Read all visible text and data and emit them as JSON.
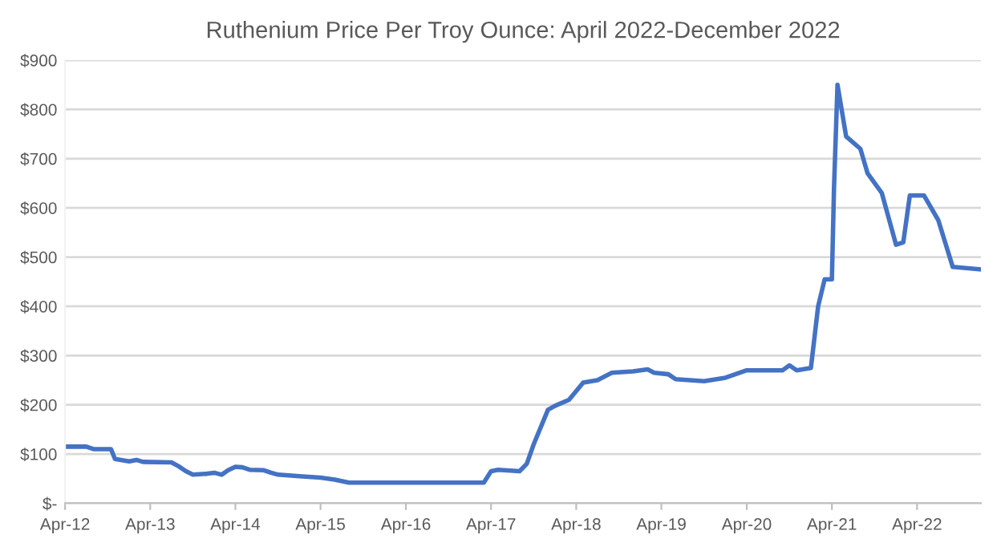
{
  "chart_data": {
    "type": "line",
    "title": "Ruthenium Price Per Troy Ounce: April 2022-December 2022",
    "x": [
      "2012-04-01",
      "2012-07-01",
      "2012-08-01",
      "2012-10-15",
      "2012-11-01",
      "2013-01-01",
      "2013-02-01",
      "2013-03-01",
      "2013-07-01",
      "2013-08-01",
      "2013-09-01",
      "2013-10-01",
      "2013-12-01",
      "2014-01-01",
      "2014-02-01",
      "2014-03-01",
      "2014-04-01",
      "2014-05-01",
      "2014-06-01",
      "2014-08-01",
      "2014-09-01",
      "2014-10-01",
      "2015-01-01",
      "2015-04-01",
      "2015-06-01",
      "2015-08-01",
      "2016-04-01",
      "2017-03-01",
      "2017-04-01",
      "2017-05-01",
      "2017-08-01",
      "2017-09-01",
      "2017-10-01",
      "2017-12-01",
      "2018-01-01",
      "2018-03-01",
      "2018-05-01",
      "2018-07-01",
      "2018-09-01",
      "2018-12-01",
      "2019-02-01",
      "2019-03-01",
      "2019-05-01",
      "2019-06-01",
      "2019-10-01",
      "2020-01-01",
      "2020-04-01",
      "2020-09-01",
      "2020-10-01",
      "2020-11-01",
      "2021-01-01",
      "2021-02-01",
      "2021-03-01",
      "2021-04-01",
      "2021-04-10",
      "2021-04-25",
      "2021-06-01",
      "2021-08-01",
      "2021-09-01",
      "2021-11-01",
      "2022-01-01",
      "2022-02-01",
      "2022-03-01",
      "2022-05-01",
      "2022-07-01",
      "2022-09-01",
      "2022-12-31"
    ],
    "series": [
      {
        "color": "#4472c4",
        "values": [
          115,
          115,
          110,
          110,
          90,
          85,
          88,
          84,
          83,
          75,
          65,
          58,
          60,
          62,
          58,
          67,
          74,
          73,
          68,
          67,
          62,
          58,
          55,
          52,
          48,
          42,
          42,
          42,
          65,
          68,
          65,
          80,
          120,
          190,
          198,
          210,
          245,
          250,
          265,
          268,
          272,
          265,
          262,
          252,
          248,
          255,
          270,
          270,
          280,
          270,
          275,
          400,
          455,
          455,
          640,
          850,
          745,
          720,
          670,
          630,
          525,
          530,
          625,
          625,
          575,
          480,
          475
        ]
      }
    ],
    "xlim": [
      "2012-04-01",
      "2022-12-31"
    ],
    "xticks": [
      {
        "value": "2012-04-01",
        "label": "Apr-12"
      },
      {
        "value": "2013-04-01",
        "label": "Apr-13"
      },
      {
        "value": "2014-04-01",
        "label": "Apr-14"
      },
      {
        "value": "2015-04-01",
        "label": "Apr-15"
      },
      {
        "value": "2016-04-01",
        "label": "Apr-16"
      },
      {
        "value": "2017-04-01",
        "label": "Apr-17"
      },
      {
        "value": "2018-04-01",
        "label": "Apr-18"
      },
      {
        "value": "2019-04-01",
        "label": "Apr-19"
      },
      {
        "value": "2020-04-01",
        "label": "Apr-20"
      },
      {
        "value": "2021-04-01",
        "label": "Apr-21"
      },
      {
        "value": "2022-04-01",
        "label": "Apr-22"
      }
    ],
    "ylim": [
      0,
      900
    ],
    "yticks": [
      {
        "value": 0,
        "label": "$-"
      },
      {
        "value": 100,
        "label": "$100"
      },
      {
        "value": 200,
        "label": "$200"
      },
      {
        "value": 300,
        "label": "$300"
      },
      {
        "value": 400,
        "label": "$400"
      },
      {
        "value": 500,
        "label": "$500"
      },
      {
        "value": 600,
        "label": "$600"
      },
      {
        "value": 700,
        "label": "$700"
      },
      {
        "value": 800,
        "label": "$800"
      },
      {
        "value": 900,
        "label": "$900"
      }
    ],
    "grid": "y",
    "legend": false,
    "marker": "none",
    "line_style": "solid"
  }
}
